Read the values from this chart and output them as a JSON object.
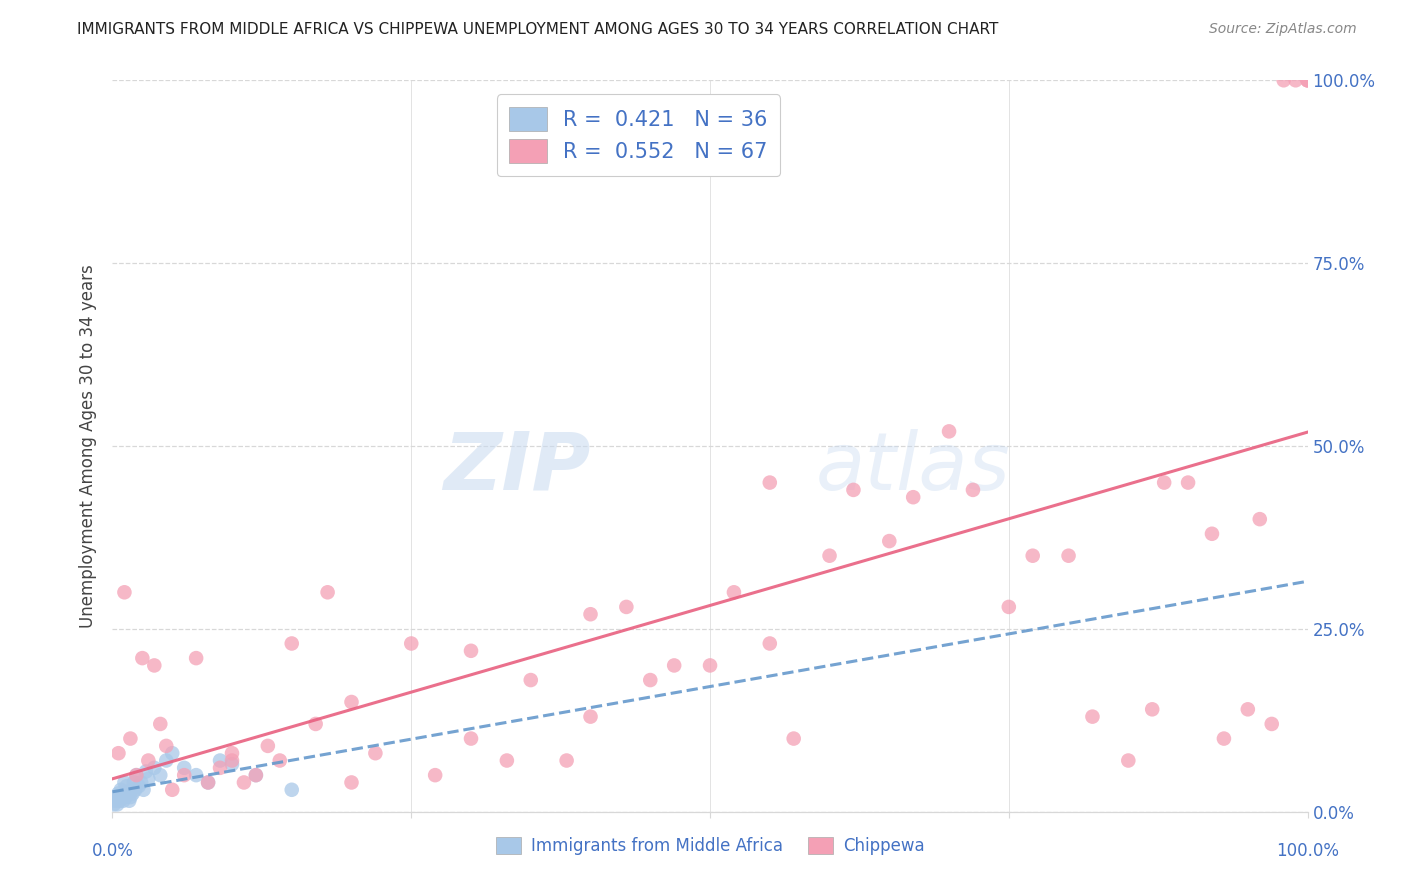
{
  "title": "IMMIGRANTS FROM MIDDLE AFRICA VS CHIPPEWA UNEMPLOYMENT AMONG AGES 30 TO 34 YEARS CORRELATION CHART",
  "source": "Source: ZipAtlas.com",
  "ylabel": "Unemployment Among Ages 30 to 34 years",
  "legend_label_blue": "Immigrants from Middle Africa",
  "legend_label_pink": "Chippewa",
  "R_blue": 0.421,
  "N_blue": 36,
  "R_pink": 0.552,
  "N_pink": 67,
  "blue_color": "#a8c8e8",
  "pink_color": "#f4a0b5",
  "blue_line_color": "#6699cc",
  "pink_line_color": "#e86080",
  "blue_x": [
    0.1,
    0.2,
    0.3,
    0.4,
    0.5,
    0.6,
    0.7,
    0.8,
    0.9,
    1.0,
    1.1,
    1.2,
    1.3,
    1.4,
    1.5,
    1.6,
    1.7,
    1.8,
    1.9,
    2.0,
    2.2,
    2.4,
    2.6,
    2.8,
    3.0,
    3.5,
    4.0,
    4.5,
    5.0,
    6.0,
    7.0,
    8.0,
    9.0,
    10.0,
    12.0,
    15.0
  ],
  "blue_y": [
    1.0,
    1.5,
    2.0,
    1.0,
    2.5,
    1.5,
    3.0,
    2.0,
    1.5,
    4.0,
    2.0,
    3.5,
    2.5,
    1.5,
    2.0,
    3.0,
    2.5,
    4.0,
    3.0,
    5.0,
    3.5,
    4.0,
    3.0,
    5.5,
    4.5,
    6.0,
    5.0,
    7.0,
    8.0,
    6.0,
    5.0,
    4.0,
    7.0,
    6.5,
    5.0,
    3.0
  ],
  "pink_x": [
    0.5,
    1.0,
    1.5,
    2.0,
    2.5,
    3.0,
    3.5,
    4.0,
    4.5,
    5.0,
    6.0,
    7.0,
    8.0,
    9.0,
    10.0,
    11.0,
    12.0,
    13.0,
    14.0,
    15.0,
    17.0,
    18.0,
    20.0,
    22.0,
    25.0,
    27.0,
    30.0,
    33.0,
    35.0,
    38.0,
    40.0,
    43.0,
    45.0,
    47.0,
    50.0,
    52.0,
    55.0,
    57.0,
    60.0,
    62.0,
    65.0,
    67.0,
    70.0,
    72.0,
    75.0,
    77.0,
    80.0,
    82.0,
    85.0,
    87.0,
    88.0,
    90.0,
    92.0,
    93.0,
    95.0,
    96.0,
    97.0,
    98.0,
    99.0,
    100.0,
    100.0,
    100.0,
    55.0,
    40.0,
    30.0,
    20.0,
    10.0
  ],
  "pink_y": [
    8.0,
    30.0,
    10.0,
    5.0,
    21.0,
    7.0,
    20.0,
    12.0,
    9.0,
    3.0,
    5.0,
    21.0,
    4.0,
    6.0,
    7.0,
    4.0,
    5.0,
    9.0,
    7.0,
    23.0,
    12.0,
    30.0,
    4.0,
    8.0,
    23.0,
    5.0,
    10.0,
    7.0,
    18.0,
    7.0,
    13.0,
    28.0,
    18.0,
    20.0,
    20.0,
    30.0,
    23.0,
    10.0,
    35.0,
    44.0,
    37.0,
    43.0,
    52.0,
    44.0,
    28.0,
    35.0,
    35.0,
    13.0,
    7.0,
    14.0,
    45.0,
    45.0,
    38.0,
    10.0,
    14.0,
    40.0,
    12.0,
    100.0,
    100.0,
    100.0,
    100.0,
    100.0,
    45.0,
    27.0,
    22.0,
    15.0,
    8.0
  ],
  "xlim": [
    0,
    100
  ],
  "ylim": [
    0,
    100
  ],
  "yticks": [
    0,
    25,
    50,
    75,
    100
  ],
  "ytick_labels": [
    "0.0%",
    "25.0%",
    "50.0%",
    "75.0%",
    "100.0%"
  ],
  "xtick_labels_show": [
    "0.0%",
    "100.0%"
  ],
  "grid_color": "#d8d8d8",
  "title_fontsize": 11,
  "source_fontsize": 10,
  "axis_label_color": "#4472c4",
  "watermark_zip_color": "#c8daf0",
  "watermark_atlas_color": "#c8daf0"
}
